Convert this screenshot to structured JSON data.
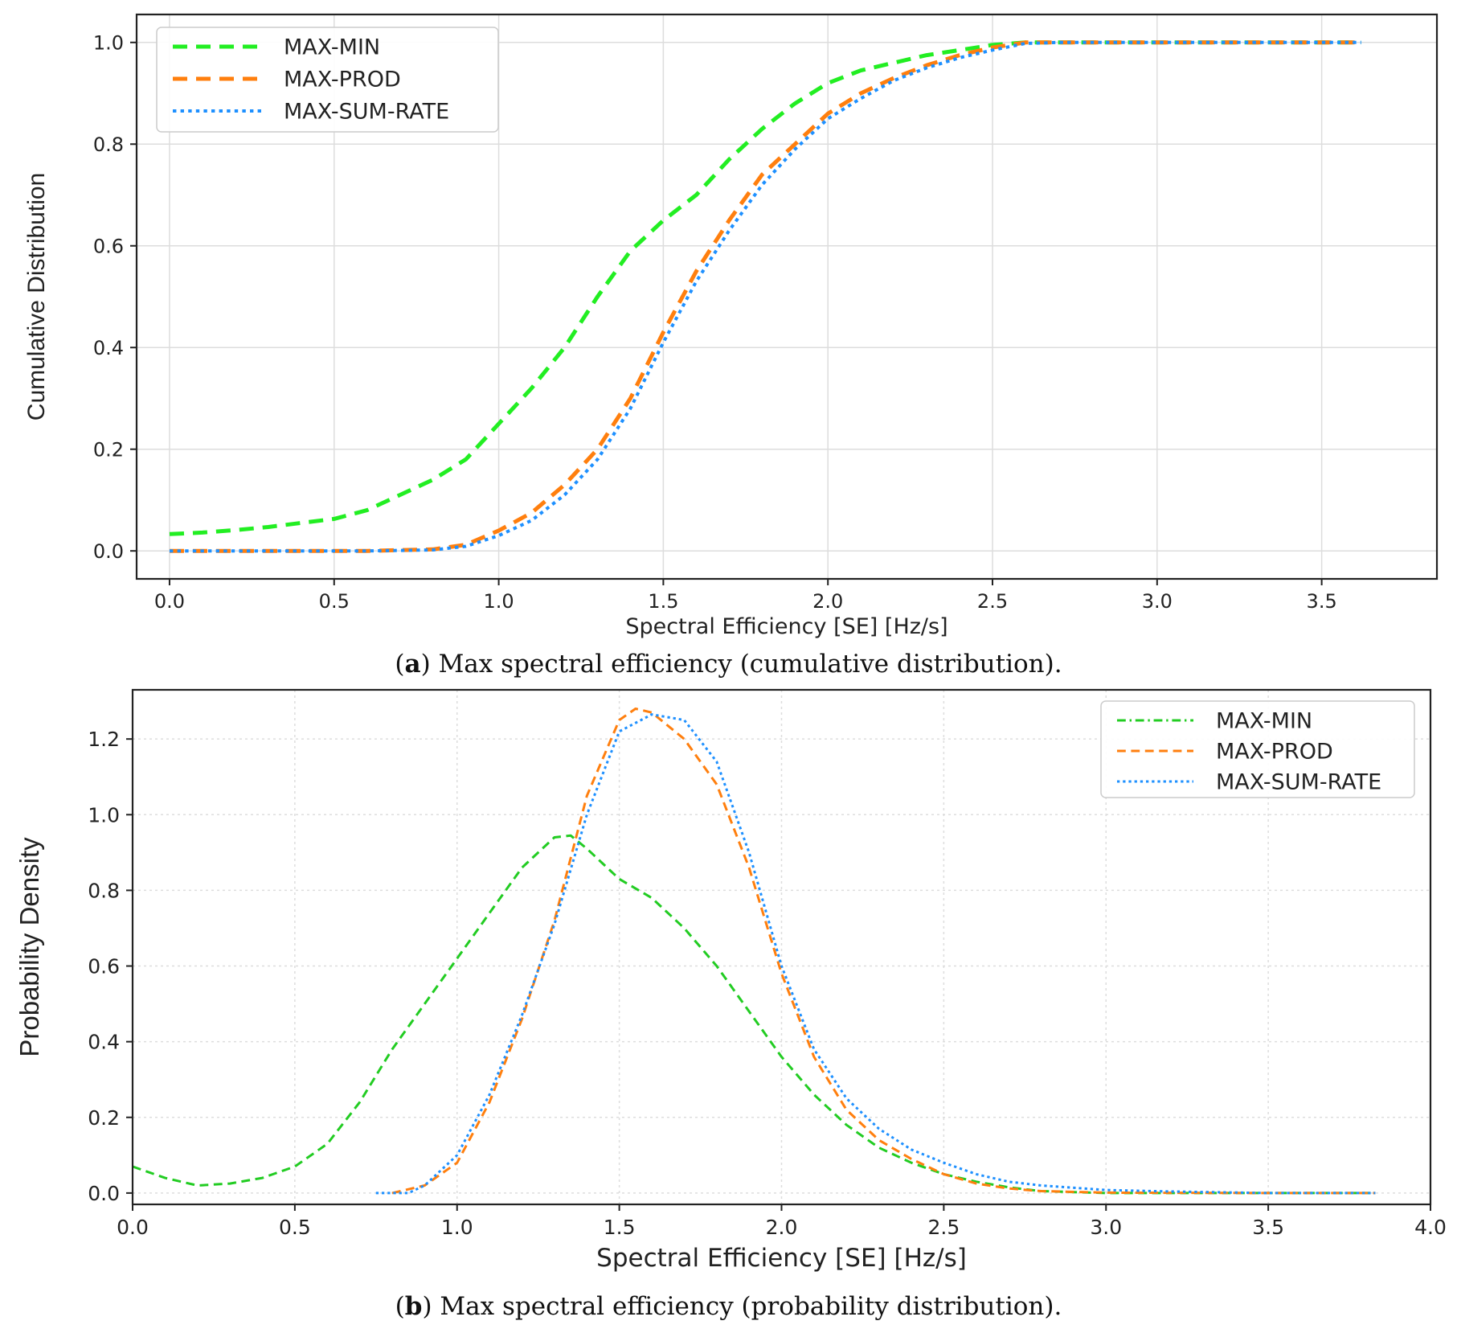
{
  "chart_data": [
    {
      "type": "line",
      "xlabel": "Spectral Efficiency [SE] [Hz/s]",
      "ylabel": "Cumulative Distribution",
      "xlim": [
        -0.1,
        3.85
      ],
      "ylim": [
        -0.055,
        1.055
      ],
      "xticks": [
        0.0,
        0.5,
        1.0,
        1.5,
        2.0,
        2.5,
        3.0,
        3.5
      ],
      "xtick_labels": [
        "0.0",
        "0.5",
        "1.0",
        "1.5",
        "2.0",
        "2.5",
        "3.0",
        "3.5"
      ],
      "yticks": [
        0.0,
        0.2,
        0.4,
        0.6,
        0.8,
        1.0
      ],
      "ytick_labels": [
        "0.0",
        "0.2",
        "0.4",
        "0.6",
        "0.8",
        "1.0"
      ],
      "grid": true,
      "grid_style": "solid",
      "legend_position": "top-left",
      "caption_prefix": "a",
      "caption": "Max spectral efficiency (cumulative distribution).",
      "series": [
        {
          "name": "MAX-MIN",
          "color": "#22ee22",
          "dash": "dashed",
          "width": 5,
          "x": [
            0.0,
            0.1,
            0.2,
            0.3,
            0.4,
            0.5,
            0.6,
            0.7,
            0.8,
            0.9,
            1.0,
            1.1,
            1.2,
            1.3,
            1.4,
            1.5,
            1.6,
            1.7,
            1.8,
            1.9,
            2.0,
            2.1,
            2.2,
            2.3,
            2.4,
            2.5,
            2.6,
            2.7,
            3.0,
            3.3,
            3.62
          ],
          "y": [
            0.033,
            0.036,
            0.041,
            0.047,
            0.055,
            0.063,
            0.08,
            0.11,
            0.14,
            0.18,
            0.25,
            0.32,
            0.4,
            0.5,
            0.59,
            0.65,
            0.7,
            0.77,
            0.83,
            0.88,
            0.92,
            0.945,
            0.96,
            0.975,
            0.985,
            0.995,
            1.0,
            1.0,
            1.0,
            1.0,
            1.0
          ]
        },
        {
          "name": "MAX-PROD",
          "color": "#ff7f0e",
          "dash": "dashed",
          "width": 5,
          "x": [
            0.0,
            0.2,
            0.4,
            0.6,
            0.8,
            0.9,
            1.0,
            1.1,
            1.2,
            1.3,
            1.4,
            1.5,
            1.6,
            1.7,
            1.8,
            1.9,
            2.0,
            2.1,
            2.2,
            2.3,
            2.4,
            2.5,
            2.6,
            2.7,
            3.0,
            3.3,
            3.62
          ],
          "y": [
            0.0,
            0.0,
            0.0,
            0.0,
            0.003,
            0.012,
            0.04,
            0.075,
            0.13,
            0.2,
            0.3,
            0.43,
            0.55,
            0.65,
            0.74,
            0.8,
            0.86,
            0.9,
            0.93,
            0.955,
            0.975,
            0.99,
            1.0,
            1.0,
            1.0,
            1.0,
            1.0
          ]
        },
        {
          "name": "MAX-SUM-RATE",
          "color": "#1e90ff",
          "dash": "dotted",
          "width": 4,
          "x": [
            0.0,
            0.2,
            0.4,
            0.6,
            0.8,
            0.9,
            1.0,
            1.1,
            1.2,
            1.3,
            1.4,
            1.5,
            1.6,
            1.7,
            1.8,
            1.9,
            2.0,
            2.1,
            2.2,
            2.3,
            2.4,
            2.5,
            2.6,
            2.7,
            3.0,
            3.3,
            3.62
          ],
          "y": [
            0.0,
            0.0,
            0.0,
            0.0,
            0.002,
            0.009,
            0.03,
            0.06,
            0.11,
            0.18,
            0.28,
            0.41,
            0.53,
            0.63,
            0.72,
            0.79,
            0.85,
            0.89,
            0.925,
            0.95,
            0.97,
            0.985,
            0.998,
            1.0,
            1.0,
            1.0,
            1.0
          ]
        }
      ]
    },
    {
      "type": "line",
      "xlabel": "Spectral Efficiency [SE] [Hz/s]",
      "ylabel": "Probability Density",
      "xlim": [
        0.0,
        4.0
      ],
      "ylim": [
        -0.03,
        1.33
      ],
      "xticks": [
        0.0,
        0.5,
        1.0,
        1.5,
        2.0,
        2.5,
        3.0,
        3.5,
        4.0
      ],
      "xtick_labels": [
        "0.0",
        "0.5",
        "1.0",
        "1.5",
        "2.0",
        "2.5",
        "3.0",
        "3.5",
        "4.0"
      ],
      "yticks": [
        0.0,
        0.2,
        0.4,
        0.6,
        0.8,
        1.0,
        1.2
      ],
      "ytick_labels": [
        "0.0",
        "0.2",
        "0.4",
        "0.6",
        "0.8",
        "1.0",
        "1.2"
      ],
      "grid": true,
      "grid_style": "dotted",
      "legend_position": "top-right",
      "caption_prefix": "b",
      "caption": "Max spectral efficiency (probability distribution).",
      "series": [
        {
          "name": "MAX-MIN",
          "color": "#22cc22",
          "dash": "dashed",
          "legend_dash": "dashdot",
          "width": 3,
          "x": [
            0.0,
            0.1,
            0.2,
            0.3,
            0.4,
            0.5,
            0.6,
            0.7,
            0.8,
            0.9,
            1.0,
            1.1,
            1.2,
            1.3,
            1.35,
            1.4,
            1.5,
            1.6,
            1.7,
            1.8,
            1.9,
            2.0,
            2.1,
            2.2,
            2.3,
            2.4,
            2.5,
            2.6,
            2.7,
            2.8,
            3.0,
            3.5,
            3.83
          ],
          "y": [
            0.07,
            0.04,
            0.02,
            0.025,
            0.04,
            0.07,
            0.13,
            0.24,
            0.38,
            0.5,
            0.62,
            0.74,
            0.86,
            0.94,
            0.945,
            0.91,
            0.83,
            0.78,
            0.7,
            0.6,
            0.48,
            0.36,
            0.26,
            0.18,
            0.12,
            0.08,
            0.05,
            0.03,
            0.015,
            0.005,
            0.0,
            0.0,
            0.0
          ]
        },
        {
          "name": "MAX-PROD",
          "color": "#ff7f0e",
          "dash": "dashed",
          "width": 3,
          "x": [
            0.8,
            0.9,
            1.0,
            1.1,
            1.2,
            1.3,
            1.4,
            1.5,
            1.55,
            1.6,
            1.7,
            1.8,
            1.9,
            2.0,
            2.1,
            2.2,
            2.3,
            2.4,
            2.5,
            2.6,
            2.7,
            2.8,
            3.0,
            3.5,
            3.83
          ],
          "y": [
            0.0,
            0.02,
            0.08,
            0.24,
            0.46,
            0.72,
            1.05,
            1.25,
            1.28,
            1.27,
            1.2,
            1.08,
            0.86,
            0.58,
            0.36,
            0.22,
            0.14,
            0.09,
            0.05,
            0.025,
            0.012,
            0.005,
            0.001,
            0.0,
            0.0
          ]
        },
        {
          "name": "MAX-SUM-RATE",
          "color": "#1e90ff",
          "dash": "dotted",
          "width": 3,
          "x": [
            0.75,
            0.85,
            0.9,
            1.0,
            1.1,
            1.2,
            1.3,
            1.4,
            1.5,
            1.6,
            1.7,
            1.8,
            1.9,
            2.0,
            2.1,
            2.2,
            2.3,
            2.4,
            2.5,
            2.6,
            2.7,
            2.8,
            3.0,
            3.2,
            3.5,
            3.83
          ],
          "y": [
            0.0,
            0.0,
            0.02,
            0.1,
            0.26,
            0.47,
            0.71,
            1.0,
            1.22,
            1.265,
            1.25,
            1.14,
            0.9,
            0.6,
            0.38,
            0.25,
            0.17,
            0.115,
            0.08,
            0.05,
            0.03,
            0.02,
            0.008,
            0.004,
            0.0,
            0.0
          ]
        }
      ]
    }
  ]
}
